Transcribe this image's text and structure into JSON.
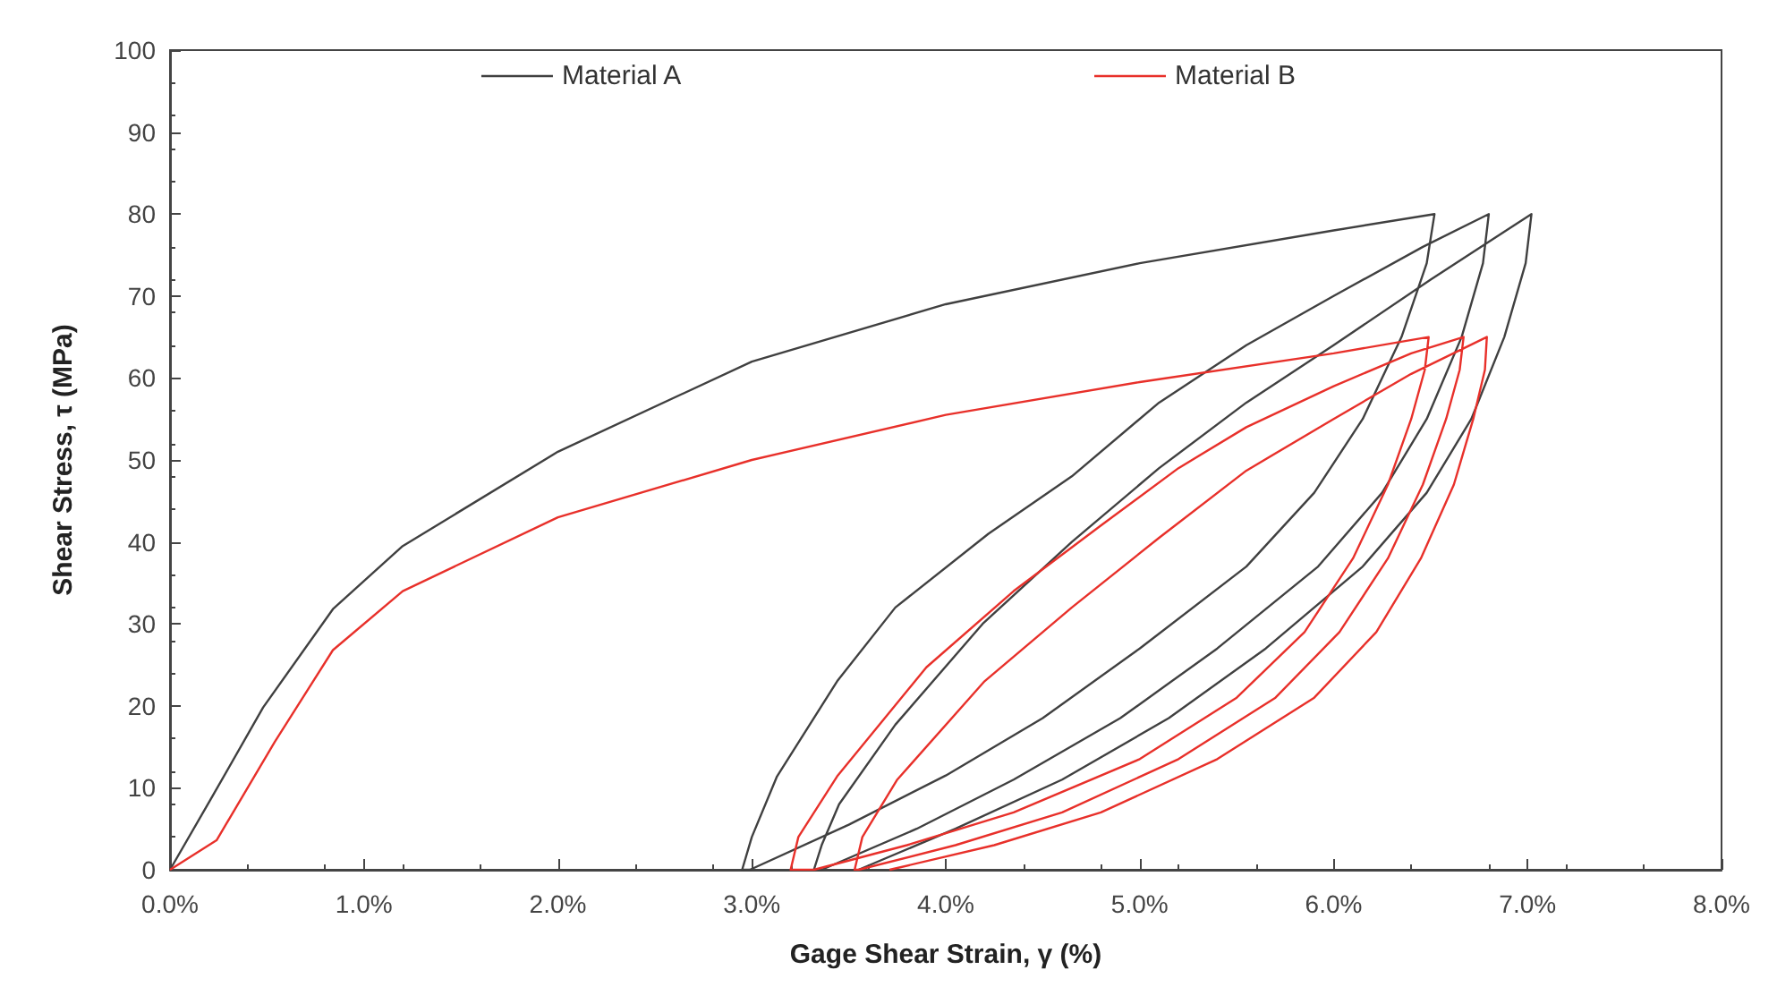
{
  "chart_data": {
    "type": "line",
    "xlabel": "Gage Shear Strain, γ (%)",
    "ylabel": "Shear Stress, τ (MPa)",
    "xlim": [
      0,
      8
    ],
    "ylim": [
      0,
      100
    ],
    "xticks": [
      {
        "value": 0,
        "label": "0.0%"
      },
      {
        "value": 1,
        "label": "1.0%"
      },
      {
        "value": 2,
        "label": "2.0%"
      },
      {
        "value": 3,
        "label": "3.0%"
      },
      {
        "value": 4,
        "label": "4.0%"
      },
      {
        "value": 5,
        "label": "5.0%"
      },
      {
        "value": 6,
        "label": "6.0%"
      },
      {
        "value": 7,
        "label": "7.0%"
      },
      {
        "value": 8,
        "label": "8.0%"
      }
    ],
    "yticks": [
      0,
      10,
      20,
      30,
      40,
      50,
      60,
      70,
      80,
      90,
      100
    ],
    "grid": false,
    "legend": "top",
    "marker": "none",
    "line_style": "solid",
    "series": [
      {
        "name": "Material A",
        "color": "#404040",
        "x": [
          0,
          0.21,
          0.48,
          0.84,
          1.2,
          2.0,
          3.0,
          4.0,
          5.0,
          6.0,
          6.52,
          6.48,
          6.35,
          6.15,
          5.9,
          5.55,
          5.0,
          4.5,
          4.0,
          3.5,
          2.99,
          2.95,
          3.0,
          3.13,
          3.44,
          3.74,
          4.22,
          4.65,
          5.1,
          5.55,
          6.0,
          6.46,
          6.8,
          6.77,
          6.66,
          6.48,
          6.25,
          5.92,
          5.4,
          4.9,
          4.35,
          3.85,
          3.36,
          3.32,
          3.36,
          3.45,
          3.74,
          4.19,
          4.65,
          5.1,
          5.55,
          6.0,
          6.5,
          7.02,
          6.99,
          6.88,
          6.71,
          6.48,
          6.15,
          5.65,
          5.15,
          4.6,
          4.05,
          3.55
        ],
        "values": [
          0,
          8.6,
          19.8,
          31.8,
          39.5,
          51,
          62,
          69,
          74,
          78,
          80,
          74,
          65,
          55,
          46,
          37,
          27,
          18.5,
          11.5,
          5.5,
          0,
          0,
          4,
          11.4,
          23,
          32,
          41,
          48,
          57,
          64,
          70,
          76,
          80,
          74,
          65,
          55,
          46,
          37,
          27,
          18.5,
          11,
          5,
          0,
          0,
          3,
          8,
          17.7,
          30,
          40,
          49,
          57,
          64,
          72,
          80,
          74,
          65,
          55,
          46,
          37,
          27,
          18.5,
          11,
          5,
          0
        ]
      },
      {
        "name": "Material B",
        "color": "#e8302a",
        "x": [
          0,
          0.24,
          0.54,
          0.84,
          1.2,
          2.0,
          3.0,
          4.0,
          5.0,
          6.0,
          6.49,
          6.47,
          6.4,
          6.28,
          6.1,
          5.85,
          5.5,
          5.0,
          4.35,
          3.8,
          3.32,
          3.2,
          3.24,
          3.44,
          3.9,
          4.35,
          4.8,
          5.2,
          5.55,
          6.0,
          6.4,
          6.67,
          6.65,
          6.58,
          6.46,
          6.28,
          6.03,
          5.7,
          5.2,
          4.6,
          4.05,
          3.55,
          3.53,
          3.57,
          3.75,
          4.2,
          4.65,
          5.1,
          5.55,
          6.0,
          6.4,
          6.79,
          6.78,
          6.72,
          6.62,
          6.45,
          6.22,
          5.9,
          5.4,
          4.8,
          4.25,
          3.71
        ],
        "values": [
          0,
          3.6,
          15.6,
          26.8,
          34,
          43,
          50,
          55.5,
          59.5,
          63,
          65,
          61,
          55,
          47,
          38,
          29,
          21,
          13.5,
          7,
          3,
          0,
          0,
          4,
          11.4,
          24.7,
          34,
          42,
          49,
          54,
          59,
          63,
          65,
          61,
          55,
          47,
          38,
          29,
          21,
          13.5,
          7,
          3,
          0,
          0,
          4,
          11,
          23,
          32,
          40.5,
          48.7,
          55,
          60.5,
          65,
          61,
          55,
          47,
          38,
          29,
          21,
          13.5,
          7,
          3,
          0
        ]
      }
    ]
  }
}
